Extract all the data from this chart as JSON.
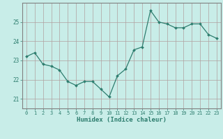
{
  "x": [
    0,
    1,
    2,
    3,
    4,
    5,
    6,
    7,
    8,
    9,
    10,
    11,
    12,
    13,
    14,
    15,
    16,
    17,
    18,
    19,
    20,
    21,
    22,
    23
  ],
  "y": [
    23.2,
    23.4,
    22.8,
    22.7,
    22.5,
    21.9,
    21.7,
    21.9,
    21.9,
    21.5,
    21.1,
    22.2,
    22.55,
    23.55,
    23.7,
    25.6,
    25.0,
    24.9,
    24.7,
    24.7,
    24.9,
    24.9,
    24.35,
    24.15
  ],
  "xlabel": "Humidex (Indice chaleur)",
  "xlim": [
    -0.5,
    23.5
  ],
  "ylim": [
    20.5,
    26.0
  ],
  "yticks": [
    21,
    22,
    23,
    24,
    25
  ],
  "xticks": [
    0,
    1,
    2,
    3,
    4,
    5,
    6,
    7,
    8,
    9,
    10,
    11,
    12,
    13,
    14,
    15,
    16,
    17,
    18,
    19,
    20,
    21,
    22,
    23
  ],
  "line_color": "#2d7d6e",
  "marker_color": "#2d7d6e",
  "bg_color": "#c8ede8",
  "grid_color": "#b0a0a0",
  "axis_color": "#808080",
  "label_color": "#2d7d6e",
  "tick_label_fontsize": 5.0,
  "xlabel_fontsize": 6.5
}
